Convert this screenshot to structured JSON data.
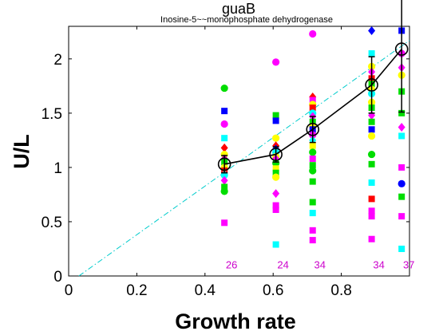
{
  "chart_data": {
    "type": "scatter",
    "title": "guaB",
    "subtitle": "Inosine-5~~monophosphate dehydrogenase",
    "xlabel": "Growth rate",
    "ylabel": "U/L",
    "xlim": [
      0,
      1
    ],
    "ylim": [
      0,
      2.3
    ],
    "xticks": [
      0,
      0.2,
      0.4,
      0.6,
      0.8
    ],
    "xtick_labels": [
      "0",
      "0.2",
      "0.4",
      "0.6",
      "0.8"
    ],
    "yticks": [
      0,
      0.5,
      1,
      1.5,
      2
    ],
    "ytick_labels": [
      "0",
      "0.5",
      "1",
      "1.5",
      "2"
    ],
    "grid": false,
    "reference_line": {
      "color": "#00cccc",
      "style": "dash-dot",
      "points": [
        [
          0.03,
          0
        ],
        [
          1.0,
          2.17
        ]
      ]
    },
    "mean_line": {
      "color": "#000000",
      "x": [
        0.457,
        0.608,
        0.716,
        0.889,
        0.977
      ],
      "y": [
        1.03,
        1.12,
        1.35,
        1.76,
        2.09
      ],
      "error": [
        0.08,
        0.07,
        0.12,
        0.26,
        0.58
      ]
    },
    "counts": {
      "color": "#cc00cc",
      "x": [
        0.457,
        0.608,
        0.716,
        0.889,
        0.977
      ],
      "labels": [
        "26",
        "24",
        "34",
        "34",
        "37"
      ],
      "y": 0.1
    },
    "points": [
      {
        "x": 0.457,
        "y": 1.73,
        "color": "#00dd00",
        "marker": "o"
      },
      {
        "x": 0.457,
        "y": 1.52,
        "color": "#0000ff",
        "marker": "s"
      },
      {
        "x": 0.457,
        "y": 1.4,
        "color": "#ff00ff",
        "marker": "o"
      },
      {
        "x": 0.457,
        "y": 1.27,
        "color": "#00ffff",
        "marker": "s"
      },
      {
        "x": 0.457,
        "y": 1.18,
        "color": "#ff0000",
        "marker": "d"
      },
      {
        "x": 0.457,
        "y": 1.12,
        "color": "#ffff00",
        "marker": "o"
      },
      {
        "x": 0.457,
        "y": 1.08,
        "color": "#cc00cc",
        "marker": "d"
      },
      {
        "x": 0.457,
        "y": 1.05,
        "color": "#00dd00",
        "marker": "s"
      },
      {
        "x": 0.457,
        "y": 1.0,
        "color": "#ffff00",
        "marker": "o"
      },
      {
        "x": 0.457,
        "y": 0.97,
        "color": "#ff0000",
        "marker": "s"
      },
      {
        "x": 0.457,
        "y": 0.93,
        "color": "#00ffff",
        "marker": "o"
      },
      {
        "x": 0.457,
        "y": 0.88,
        "color": "#ff00ff",
        "marker": "d"
      },
      {
        "x": 0.457,
        "y": 0.82,
        "color": "#00dd00",
        "marker": "s"
      },
      {
        "x": 0.457,
        "y": 0.78,
        "color": "#00dd00",
        "marker": "o"
      },
      {
        "x": 0.457,
        "y": 0.49,
        "color": "#ff00ff",
        "marker": "s"
      },
      {
        "x": 0.608,
        "y": 1.97,
        "color": "#ff00ff",
        "marker": "o"
      },
      {
        "x": 0.608,
        "y": 1.48,
        "color": "#00dd00",
        "marker": "s"
      },
      {
        "x": 0.608,
        "y": 1.43,
        "color": "#0000ff",
        "marker": "s"
      },
      {
        "x": 0.608,
        "y": 1.27,
        "color": "#ffff00",
        "marker": "o"
      },
      {
        "x": 0.608,
        "y": 1.2,
        "color": "#ff0000",
        "marker": "d"
      },
      {
        "x": 0.608,
        "y": 1.17,
        "color": "#0000ff",
        "marker": "d"
      },
      {
        "x": 0.608,
        "y": 1.14,
        "color": "#00ffff",
        "marker": "o"
      },
      {
        "x": 0.608,
        "y": 1.1,
        "color": "#ffff00",
        "marker": "o"
      },
      {
        "x": 0.608,
        "y": 1.08,
        "color": "#ff00ff",
        "marker": "d"
      },
      {
        "x": 0.608,
        "y": 1.04,
        "color": "#00dd00",
        "marker": "o"
      },
      {
        "x": 0.608,
        "y": 0.99,
        "color": "#ffff00",
        "marker": "s"
      },
      {
        "x": 0.608,
        "y": 0.95,
        "color": "#00dd00",
        "marker": "s"
      },
      {
        "x": 0.608,
        "y": 0.91,
        "color": "#ffff00",
        "marker": "o"
      },
      {
        "x": 0.608,
        "y": 0.76,
        "color": "#ff00ff",
        "marker": "d"
      },
      {
        "x": 0.608,
        "y": 0.65,
        "color": "#ff00ff",
        "marker": "s"
      },
      {
        "x": 0.608,
        "y": 0.61,
        "color": "#ff00ff",
        "marker": "s"
      },
      {
        "x": 0.608,
        "y": 0.29,
        "color": "#00ffff",
        "marker": "s"
      },
      {
        "x": 0.716,
        "y": 2.23,
        "color": "#ff00ff",
        "marker": "o"
      },
      {
        "x": 0.716,
        "y": 1.65,
        "color": "#ff0000",
        "marker": "d"
      },
      {
        "x": 0.716,
        "y": 1.62,
        "color": "#ff00ff",
        "marker": "s"
      },
      {
        "x": 0.716,
        "y": 1.58,
        "color": "#ffff00",
        "marker": "o"
      },
      {
        "x": 0.716,
        "y": 1.55,
        "color": "#ff0000",
        "marker": "s"
      },
      {
        "x": 0.716,
        "y": 1.5,
        "color": "#00ffff",
        "marker": "o"
      },
      {
        "x": 0.716,
        "y": 1.47,
        "color": "#ff00ff",
        "marker": "d"
      },
      {
        "x": 0.716,
        "y": 1.42,
        "color": "#00dd00",
        "marker": "s"
      },
      {
        "x": 0.716,
        "y": 1.38,
        "color": "#ffff00",
        "marker": "o"
      },
      {
        "x": 0.716,
        "y": 1.35,
        "color": "#0000ff",
        "marker": "s"
      },
      {
        "x": 0.716,
        "y": 1.3,
        "color": "#ff00ff",
        "marker": "o"
      },
      {
        "x": 0.716,
        "y": 1.25,
        "color": "#00ffff",
        "marker": "d"
      },
      {
        "x": 0.716,
        "y": 1.2,
        "color": "#ffff00",
        "marker": "s"
      },
      {
        "x": 0.716,
        "y": 1.14,
        "color": "#00dd00",
        "marker": "o"
      },
      {
        "x": 0.716,
        "y": 1.08,
        "color": "#ff00ff",
        "marker": "s"
      },
      {
        "x": 0.716,
        "y": 1.02,
        "color": "#00dd00",
        "marker": "s"
      },
      {
        "x": 0.716,
        "y": 0.97,
        "color": "#00dd00",
        "marker": "o"
      },
      {
        "x": 0.716,
        "y": 0.87,
        "color": "#00dd00",
        "marker": "s"
      },
      {
        "x": 0.716,
        "y": 0.68,
        "color": "#00dd00",
        "marker": "s"
      },
      {
        "x": 0.716,
        "y": 0.58,
        "color": "#00ffff",
        "marker": "s"
      },
      {
        "x": 0.716,
        "y": 0.42,
        "color": "#ff00ff",
        "marker": "s"
      },
      {
        "x": 0.716,
        "y": 0.33,
        "color": "#ff00ff",
        "marker": "s"
      },
      {
        "x": 0.889,
        "y": 2.26,
        "color": "#0000ff",
        "marker": "d"
      },
      {
        "x": 0.889,
        "y": 2.05,
        "color": "#00ffff",
        "marker": "s"
      },
      {
        "x": 0.889,
        "y": 1.93,
        "color": "#ffff00",
        "marker": "o"
      },
      {
        "x": 0.889,
        "y": 1.88,
        "color": "#ff00ff",
        "marker": "d"
      },
      {
        "x": 0.889,
        "y": 1.82,
        "color": "#ff0000",
        "marker": "s"
      },
      {
        "x": 0.889,
        "y": 1.77,
        "color": "#00dd00",
        "marker": "s"
      },
      {
        "x": 0.889,
        "y": 1.72,
        "color": "#ffff00",
        "marker": "o"
      },
      {
        "x": 0.889,
        "y": 1.68,
        "color": "#00ffff",
        "marker": "o"
      },
      {
        "x": 0.889,
        "y": 1.6,
        "color": "#ffff00",
        "marker": "o"
      },
      {
        "x": 0.889,
        "y": 1.55,
        "color": "#00dd00",
        "marker": "s"
      },
      {
        "x": 0.889,
        "y": 1.48,
        "color": "#ff00ff",
        "marker": "d"
      },
      {
        "x": 0.889,
        "y": 1.42,
        "color": "#00dd00",
        "marker": "s"
      },
      {
        "x": 0.889,
        "y": 1.35,
        "color": "#0000ff",
        "marker": "s"
      },
      {
        "x": 0.889,
        "y": 1.29,
        "color": "#ffff00",
        "marker": "o"
      },
      {
        "x": 0.889,
        "y": 1.12,
        "color": "#00dd00",
        "marker": "o"
      },
      {
        "x": 0.889,
        "y": 1.03,
        "color": "#00dd00",
        "marker": "s"
      },
      {
        "x": 0.889,
        "y": 0.86,
        "color": "#00ffff",
        "marker": "s"
      },
      {
        "x": 0.889,
        "y": 0.71,
        "color": "#ff0000",
        "marker": "s"
      },
      {
        "x": 0.889,
        "y": 0.6,
        "color": "#ff00ff",
        "marker": "s"
      },
      {
        "x": 0.889,
        "y": 0.55,
        "color": "#ff00ff",
        "marker": "s"
      },
      {
        "x": 0.889,
        "y": 0.34,
        "color": "#ff00ff",
        "marker": "s"
      },
      {
        "x": 0.977,
        "y": 2.26,
        "color": "#0000ff",
        "marker": "s"
      },
      {
        "x": 0.977,
        "y": 2.05,
        "color": "#ff00ff",
        "marker": "o"
      },
      {
        "x": 0.977,
        "y": 1.92,
        "color": "#ff00ff",
        "marker": "d"
      },
      {
        "x": 0.977,
        "y": 1.85,
        "color": "#ffff00",
        "marker": "o"
      },
      {
        "x": 0.977,
        "y": 1.7,
        "color": "#00dd00",
        "marker": "s"
      },
      {
        "x": 0.977,
        "y": 1.5,
        "color": "#00dd00",
        "marker": "s"
      },
      {
        "x": 0.977,
        "y": 1.37,
        "color": "#ff00ff",
        "marker": "d"
      },
      {
        "x": 0.977,
        "y": 1.29,
        "color": "#00ffff",
        "marker": "s"
      },
      {
        "x": 0.977,
        "y": 1.0,
        "color": "#ff00ff",
        "marker": "s"
      },
      {
        "x": 0.977,
        "y": 0.85,
        "color": "#0000ff",
        "marker": "o"
      },
      {
        "x": 0.977,
        "y": 0.73,
        "color": "#00dd00",
        "marker": "s"
      },
      {
        "x": 0.977,
        "y": 0.55,
        "color": "#ff00ff",
        "marker": "s"
      },
      {
        "x": 0.977,
        "y": 0.25,
        "color": "#00ffff",
        "marker": "s"
      }
    ]
  }
}
